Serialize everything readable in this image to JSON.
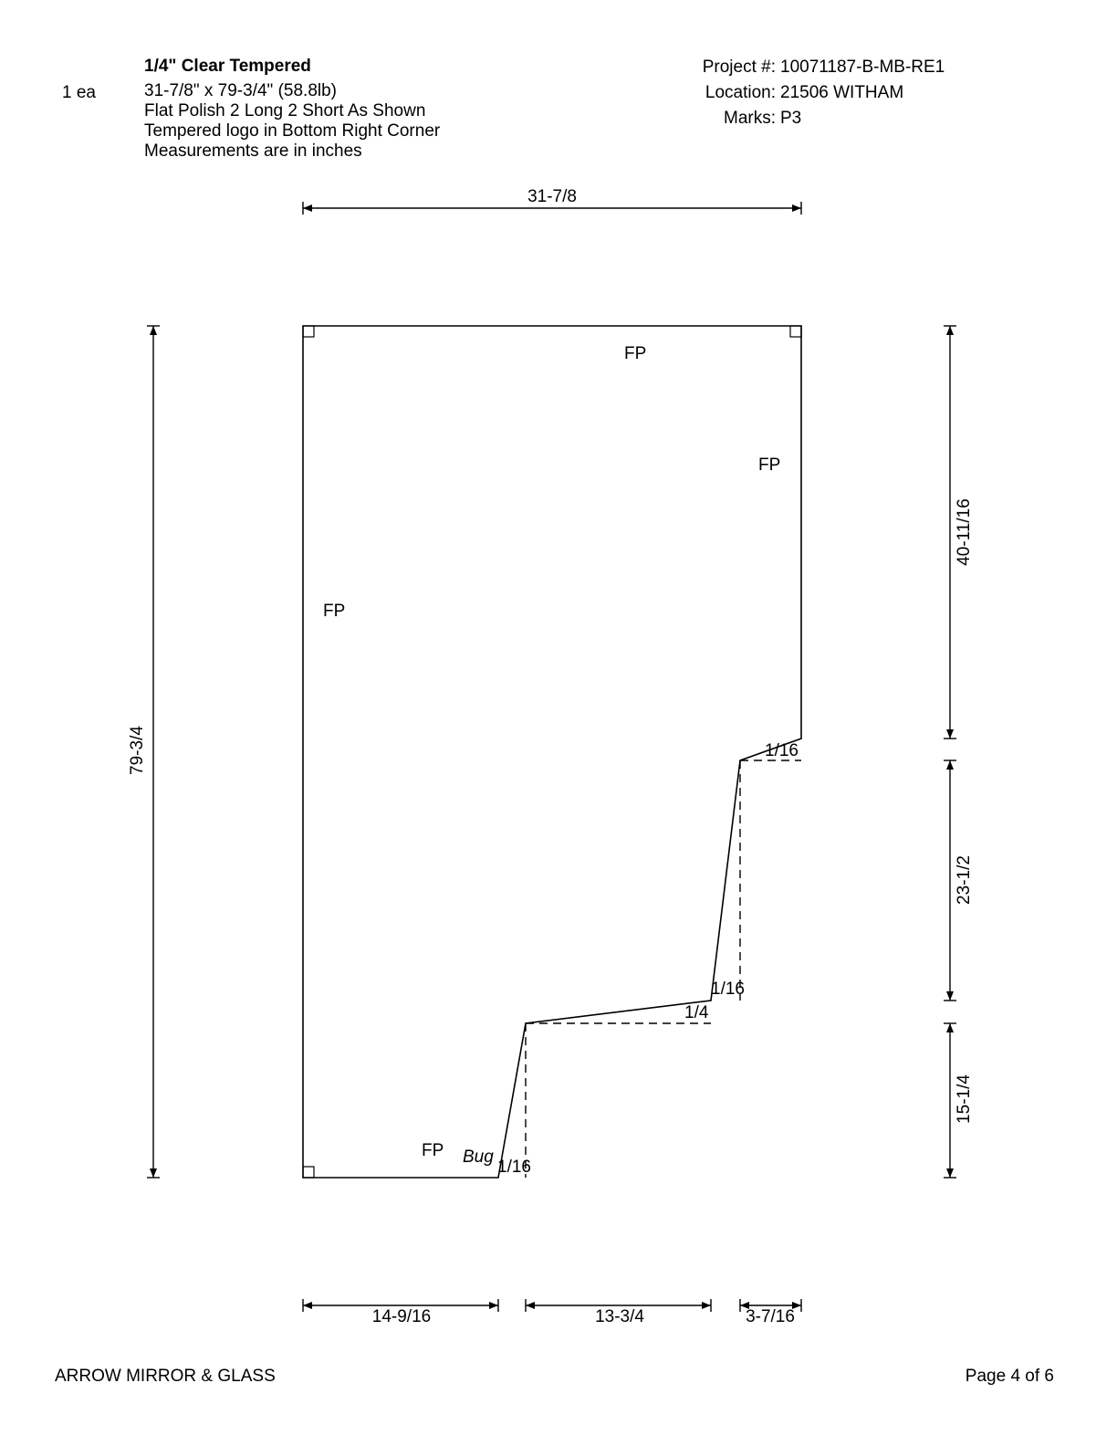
{
  "header": {
    "quantity": "1 ea",
    "glass_type": "1/4\" Clear Tempered",
    "size_line": "31-7/8\" x 79-3/4\"  (58.8lb)",
    "polish_line": "Flat Polish 2 Long 2 Short As Shown",
    "logo_line": "Tempered logo in Bottom Right Corner",
    "units_line": "Measurements are in inches",
    "project_label": "Project #:",
    "project_value": "10071187-B-MB-RE1",
    "location_label": "Location:",
    "location_value": "21506 WITHAM",
    "marks_label": "Marks:",
    "marks_value": "P3"
  },
  "dimensions": {
    "top_width": "31-7/8",
    "left_height": "79-3/4",
    "right_upper": "40-11/16",
    "right_middle": "23-1/2",
    "right_lower": "15-1/4",
    "bottom_left": "14-9/16",
    "bottom_middle": "13-3/4",
    "bottom_right": "3-7/16"
  },
  "edge_labels": {
    "top": "FP",
    "right": "FP",
    "left": "FP",
    "bottom": "FP",
    "bug": "Bug",
    "offset_upper": "1/16",
    "offset_middle": "1/16",
    "offset_step": "1/4",
    "offset_lower": "1/16"
  },
  "footer": {
    "company": "ARROW MIRROR & GLASS",
    "page": "Page 4 of 6"
  }
}
